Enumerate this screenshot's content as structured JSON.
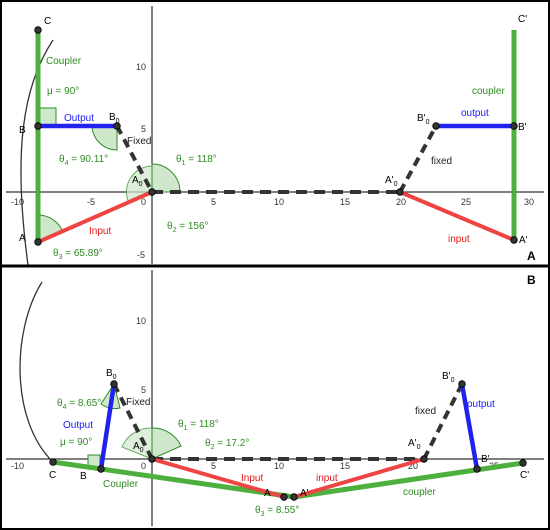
{
  "panels": {
    "A": {
      "tag": "A",
      "x_ticks": [
        "-10",
        "-5",
        "0",
        "5",
        "10",
        "15",
        "20",
        "25",
        "30"
      ],
      "y_ticks": [
        "10",
        "5",
        "-5"
      ],
      "points": {
        "C": "C",
        "B": "B",
        "A": "A",
        "B0": "B",
        "A0": "A",
        "Cp": "C'",
        "Bp": "B'",
        "Ap": "A'",
        "B0p": "B'",
        "A0p": "A'",
        "sub0": "0"
      },
      "link_labels": {
        "coupler_left": "Coupler",
        "output_left": "Output",
        "fixed_left": "Fixed",
        "input_left": "Input",
        "coupler_right": "coupler",
        "output_right": "output",
        "fixed_right": "fixed",
        "input_right": "input"
      },
      "angles": {
        "mu": "μ = 90°",
        "theta4": "θ",
        "theta4_sub": "4",
        "theta4_val": " = 90.11°",
        "theta1": "θ",
        "theta1_sub": "1",
        "theta1_val": " = 118°",
        "theta2": "θ",
        "theta2_sub": "2",
        "theta2_val": " = 156°",
        "theta3": "θ",
        "theta3_sub": "3",
        "theta3_val": " = 65.89°"
      }
    },
    "B": {
      "tag": "B",
      "x_ticks": [
        "-10",
        "-5",
        "0",
        "5",
        "10",
        "15",
        "20",
        "25"
      ],
      "y_ticks": [
        "10",
        "5"
      ],
      "points": {
        "C": "C",
        "B": "B",
        "A": "A",
        "B0": "B",
        "A0": "A",
        "Cp": "C'",
        "Bp": "B'",
        "Ap": "A'",
        "B0p": "B'",
        "A0p": "A'",
        "sub0": "0"
      },
      "link_labels": {
        "coupler_left": "Coupler",
        "output_left": "Output",
        "fixed_left": "Fixed",
        "input_left": "Input",
        "coupler_right": "coupler",
        "output_right": "output",
        "fixed_right": "fixed",
        "input_right": "input"
      },
      "angles": {
        "mu": "μ = 90°",
        "theta4": "θ",
        "theta4_sub": "4",
        "theta4_val": " = 8.65°",
        "theta1": "θ",
        "theta1_sub": "1",
        "theta1_val": " = 118°",
        "theta2": "θ",
        "theta2_sub": "2",
        "theta2_val": " = 17.2°",
        "theta3": "θ",
        "theta3_sub": "3",
        "theta3_val": " = 8.55°"
      }
    }
  },
  "colors": {
    "coupler": "#4caf3e",
    "output": "#2222ee",
    "input": "#ef4444",
    "fixed": "#333333",
    "angle_fill": "#cfe8cc",
    "angle_stroke": "#2e8b22"
  }
}
